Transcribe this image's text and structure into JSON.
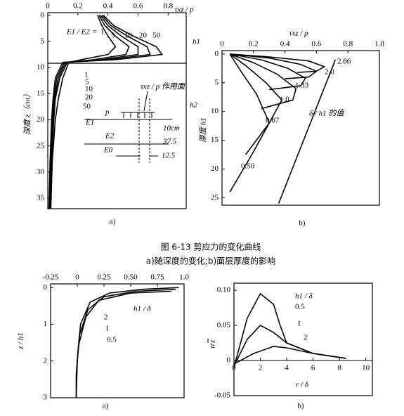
{
  "caption": "图 6-13   剪应力的变化曲线",
  "subcaption": "a)随深度的变化;b)面层厚度的影响",
  "chart_data": [
    {
      "type": "line",
      "sublabel": "a)",
      "x_label": "τxz / p",
      "y_label": "深度 z（cm）",
      "xaxis_position": "top",
      "xlim": [
        0,
        0.92
      ],
      "ylim": [
        37,
        -0.5
      ],
      "xticks": [
        0,
        0.2,
        0.4,
        0.6,
        0.8
      ],
      "yticks": [
        0,
        5,
        10,
        15,
        20,
        25,
        30,
        35
      ],
      "annotations": [
        "E1 / E2 =",
        "h1",
        "h2",
        "τxz / p 作用面",
        "p",
        "E1",
        "10cm",
        "E2",
        "37.5",
        "E0",
        "12.5"
      ],
      "series": [
        {
          "name": "1",
          "color": "#000000",
          "x": [
            0.33,
            0.36,
            0.4,
            0.45,
            0.4,
            0.22,
            0.14,
            0.1,
            0.07,
            0.05,
            0.03,
            0.02
          ],
          "values": [
            0,
            2,
            4,
            6,
            7.5,
            8.5,
            9,
            12,
            16,
            20,
            28,
            37
          ]
        },
        {
          "name": "5",
          "color": "#000000",
          "x": [
            0.34,
            0.38,
            0.45,
            0.54,
            0.52,
            0.3,
            0.13,
            0.08,
            0.05,
            0.04,
            0.025,
            0.015
          ],
          "values": [
            0,
            2,
            4,
            6,
            7.5,
            8.5,
            9,
            12,
            16,
            20,
            28,
            37
          ]
        },
        {
          "name": "10",
          "color": "#000000",
          "x": [
            0.35,
            0.4,
            0.49,
            0.6,
            0.6,
            0.35,
            0.12,
            0.07,
            0.045,
            0.035,
            0.02,
            0.012
          ],
          "values": [
            0,
            2,
            4,
            6,
            7.5,
            8.5,
            9,
            12,
            16,
            20,
            28,
            37
          ]
        },
        {
          "name": "20",
          "color": "#000000",
          "x": [
            0.36,
            0.42,
            0.53,
            0.66,
            0.68,
            0.4,
            0.11,
            0.06,
            0.04,
            0.03,
            0.018,
            0.01
          ],
          "values": [
            0,
            2,
            4,
            6,
            7.5,
            8.5,
            9,
            12,
            16,
            20,
            28,
            37
          ]
        },
        {
          "name": "50",
          "color": "#000000",
          "x": [
            0.37,
            0.44,
            0.57,
            0.72,
            0.76,
            0.45,
            0.1,
            0.05,
            0.035,
            0.025,
            0.015,
            0.008
          ],
          "values": [
            0,
            2,
            4,
            6,
            7.5,
            8.5,
            9,
            12,
            16,
            20,
            28,
            37
          ]
        }
      ]
    },
    {
      "type": "line",
      "sublabel": "b)",
      "x_label": "τxz / p",
      "y_label": "厚度 h1",
      "xaxis_position": "top",
      "xlim": [
        0,
        1
      ],
      "ylim": [
        26.3,
        -0.6
      ],
      "xticks": [
        0,
        0.2,
        0.4,
        0.6,
        0.8,
        {
          "value": 1,
          "label": "1.0"
        }
      ],
      "yticks": [
        0,
        5,
        10,
        15,
        20,
        25
      ],
      "annotations": [
        "δ / h1 的值"
      ],
      "series": [
        {
          "name": "2.66",
          "color": "#000000",
          "x": [
            0.05,
            0.3,
            0.55,
            0.65,
            0.6,
            0.48
          ],
          "values": [
            0,
            0.5,
            1.2,
            2.2,
            3,
            3.2
          ]
        },
        {
          "name": "2.0",
          "color": "#000000",
          "x": [
            0.05,
            0.3,
            0.5,
            0.6,
            0.55,
            0.4
          ],
          "values": [
            0,
            0.7,
            1.8,
            3,
            4,
            4.3
          ]
        },
        {
          "name": "1.33",
          "color": "#000000",
          "x": [
            0.05,
            0.25,
            0.42,
            0.53,
            0.5,
            0.3
          ],
          "values": [
            0,
            1,
            2.5,
            4.2,
            5.5,
            6.2
          ]
        },
        {
          "name": "1.0",
          "color": "#000000",
          "x": [
            0.05,
            0.2,
            0.35,
            0.47,
            0.45,
            0.25
          ],
          "values": [
            0,
            1.5,
            3.5,
            6,
            8,
            9.5
          ]
        },
        {
          "name": "0.67",
          "color": "#000000",
          "x": [
            0.05,
            0.15,
            0.28,
            0.38,
            0.3,
            0.15
          ],
          "values": [
            0,
            2,
            5,
            8,
            12,
            17.5
          ]
        },
        {
          "name": "0.50",
          "color": "#000000",
          "x": [
            0.05,
            0.12,
            0.22,
            0.3,
            0.2,
            0.05
          ],
          "values": [
            0,
            3,
            7,
            12,
            17,
            24
          ]
        },
        {
          "color": "#000000",
          "x": [
            0.72,
            0.36
          ],
          "values": [
            1,
            26
          ]
        }
      ]
    },
    {
      "type": "line",
      "sublabel": "a)",
      "y_label": "z / h1",
      "xaxis_position": "top",
      "xlim": [
        -0.25,
        1
      ],
      "ylim": [
        3,
        -0.1
      ],
      "xticks": [
        -0.25,
        0,
        0.25,
        {
          "value": 0.5,
          "label": "0.50"
        },
        0.75,
        {
          "value": 1,
          "label": "1.0"
        }
      ],
      "yticks": [
        0,
        1,
        2,
        3
      ],
      "annotations": [
        "h1 / δ"
      ],
      "series": [
        {
          "name": "2",
          "color": "#000000",
          "x": [
            0.95,
            0.6,
            0.3,
            0.12,
            0.03,
            0,
            -0.01
          ],
          "values": [
            0,
            0.05,
            0.15,
            0.4,
            1.0,
            2,
            3
          ]
        },
        {
          "name": "1",
          "color": "#000000",
          "x": [
            0.92,
            0.55,
            0.25,
            0.1,
            0.02,
            -0.005,
            -0.01
          ],
          "values": [
            0.05,
            0.1,
            0.25,
            0.6,
            1.3,
            2.2,
            3
          ]
        },
        {
          "name": "0.5",
          "color": "#000000",
          "x": [
            0.88,
            0.5,
            0.2,
            0.08,
            0.01,
            -0.01,
            -0.01
          ],
          "values": [
            0.1,
            0.15,
            0.35,
            0.8,
            1.6,
            2.4,
            3
          ]
        }
      ]
    },
    {
      "type": "line",
      "sublabel": "b)",
      "x_label": "r / δ",
      "y_label": "τrz",
      "xaxis_position": "zero",
      "xlim": [
        0,
        10.5
      ],
      "ylim": [
        -0.05,
        0.11
      ],
      "xticks": [
        0,
        2,
        4,
        6,
        8,
        10
      ],
      "yticks": [
        {
          "value": 0.1,
          "label": "0.10"
        },
        0.05,
        0,
        -0.05
      ],
      "annotations": [
        "h1 / δ"
      ],
      "series": [
        {
          "name": "0.5",
          "color": "#000000",
          "x": [
            0,
            1,
            2,
            3,
            3.5,
            4,
            6,
            8.5
          ],
          "values": [
            -0.01,
            0.06,
            0.095,
            0.08,
            0.05,
            0.025,
            0.01,
            0.003
          ]
        },
        {
          "name": "1",
          "color": "#000000",
          "x": [
            0,
            1,
            2,
            3,
            4,
            6,
            8.5
          ],
          "values": [
            -0.008,
            0.03,
            0.05,
            0.04,
            0.025,
            0.01,
            0.003
          ]
        },
        {
          "name": "2",
          "color": "#000000",
          "x": [
            0,
            1.5,
            3,
            4,
            6,
            8.5
          ],
          "values": [
            -0.005,
            0.01,
            0.02,
            0.018,
            0.01,
            0.003
          ]
        }
      ]
    }
  ]
}
